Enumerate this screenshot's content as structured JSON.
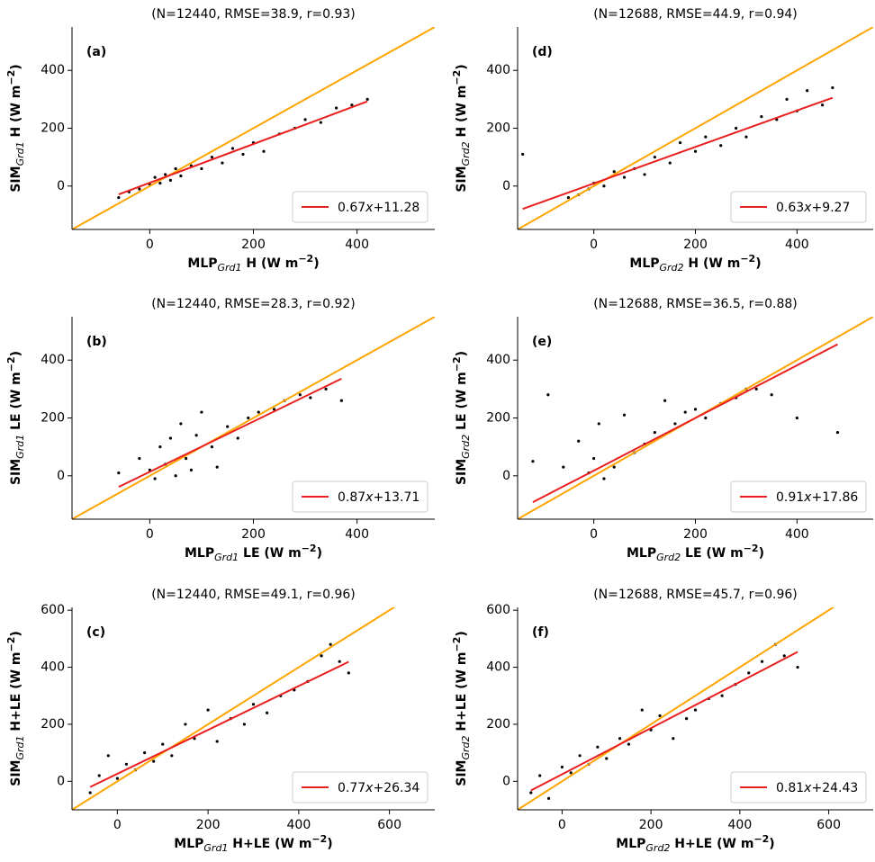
{
  "chart_data": [
    {
      "type": "scatter",
      "title": "(N=12440, RMSE=38.9, r=0.93)",
      "panel_label": "(a)",
      "xlabel": {
        "prefix": "MLP",
        "sub": "Grd1",
        "body": " H (W m",
        "sup": "−2",
        "suffix": ")"
      },
      "ylabel": {
        "prefix": "SIM",
        "sub": "Grd1",
        "body": " H (W m",
        "sup": "−2",
        "suffix": ")"
      },
      "x": [
        -60,
        -40,
        -20,
        0,
        10,
        20,
        30,
        40,
        50,
        60,
        80,
        100,
        120,
        140,
        160,
        180,
        200,
        220,
        250,
        280,
        300,
        330,
        360,
        390,
        420
      ],
      "y": [
        -40,
        -20,
        -10,
        5,
        30,
        10,
        40,
        20,
        60,
        35,
        70,
        60,
        100,
        80,
        130,
        110,
        150,
        120,
        180,
        200,
        230,
        220,
        270,
        280,
        300
      ],
      "xlim": [
        -150,
        550
      ],
      "ylim": [
        -150,
        550
      ],
      "xticks": [
        0,
        200,
        400
      ],
      "yticks": [
        0,
        200,
        400
      ],
      "fit": {
        "slope": 0.67,
        "var": "x",
        "sign": "+",
        "intercept": 11.28
      },
      "point_color": "#000000",
      "fit_color": "#e8201f",
      "identity_color": "#ffa500",
      "xlabel_color": "#9c5210",
      "ylabel_color": "#ff00ff"
    },
    {
      "type": "scatter",
      "title": "(N=12440, RMSE=28.3, r=0.92)",
      "panel_label": "(b)",
      "xlabel": {
        "prefix": "MLP",
        "sub": "Grd1",
        "body": " LE (W m",
        "sup": "−2",
        "suffix": ")"
      },
      "ylabel": {
        "prefix": "SIM",
        "sub": "Grd1",
        "body": " LE (W m",
        "sup": "−2",
        "suffix": ")"
      },
      "x": [
        -60,
        -20,
        0,
        10,
        20,
        30,
        40,
        50,
        60,
        70,
        80,
        90,
        100,
        120,
        130,
        150,
        170,
        190,
        210,
        240,
        260,
        290,
        310,
        340,
        370
      ],
      "y": [
        10,
        60,
        20,
        -10,
        100,
        40,
        130,
        0,
        180,
        60,
        20,
        140,
        220,
        100,
        30,
        170,
        130,
        200,
        220,
        230,
        260,
        280,
        270,
        300,
        260
      ],
      "xlim": [
        -150,
        550
      ],
      "ylim": [
        -150,
        550
      ],
      "xticks": [
        0,
        200,
        400
      ],
      "yticks": [
        0,
        200,
        400
      ],
      "fit": {
        "slope": 0.87,
        "var": "x",
        "sign": "+",
        "intercept": 13.71
      },
      "point_color": "#000000",
      "fit_color": "#e8201f",
      "identity_color": "#ffa500",
      "xlabel_color": "#9c5210",
      "ylabel_color": "#ff00ff"
    },
    {
      "type": "scatter",
      "title": "(N=12440, RMSE=49.1, r=0.96)",
      "panel_label": "(c)",
      "xlabel": {
        "prefix": "MLP",
        "sub": "Grd1",
        "body": " H+LE (W m",
        "sup": "−2",
        "suffix": ")"
      },
      "ylabel": {
        "prefix": "SIM",
        "sub": "Grd1",
        "body": " H+LE (W m",
        "sup": "−2",
        "suffix": ")"
      },
      "x": [
        -60,
        -40,
        -20,
        0,
        20,
        40,
        60,
        80,
        100,
        120,
        150,
        170,
        200,
        220,
        250,
        280,
        300,
        330,
        360,
        390,
        420,
        450,
        470,
        490,
        510
      ],
      "y": [
        -40,
        20,
        90,
        10,
        60,
        40,
        100,
        70,
        130,
        90,
        200,
        150,
        250,
        140,
        220,
        200,
        270,
        240,
        300,
        320,
        350,
        440,
        480,
        420,
        380
      ],
      "xlim": [
        -100,
        700
      ],
      "ylim": [
        -100,
        610
      ],
      "xticks": [
        0,
        200,
        400,
        600
      ],
      "yticks": [
        0,
        200,
        400,
        600
      ],
      "fit": {
        "slope": 0.77,
        "var": "x",
        "sign": "+",
        "intercept": 26.34
      },
      "point_color": "#000000",
      "fit_color": "#e8201f",
      "identity_color": "#ffa500",
      "xlabel_color": "#9c5210",
      "ylabel_color": "#ff00ff"
    },
    {
      "type": "scatter",
      "title": "(N=12688, RMSE=44.9, r=0.94)",
      "panel_label": "(d)",
      "xlabel": {
        "prefix": "MLP",
        "sub": "Grd2",
        "body": " H (W m",
        "sup": "−2",
        "suffix": ")"
      },
      "ylabel": {
        "prefix": "SIM",
        "sub": "Grd2",
        "body": " H (W m",
        "sup": "−2",
        "suffix": ")"
      },
      "x": [
        -140,
        -50,
        -30,
        -10,
        0,
        20,
        40,
        60,
        80,
        100,
        120,
        150,
        170,
        200,
        220,
        250,
        280,
        300,
        330,
        360,
        380,
        400,
        420,
        450,
        470
      ],
      "y": [
        110,
        -40,
        -30,
        -10,
        10,
        0,
        50,
        30,
        60,
        40,
        100,
        80,
        150,
        120,
        170,
        140,
        200,
        170,
        240,
        230,
        300,
        260,
        330,
        280,
        340
      ],
      "xlim": [
        -150,
        550
      ],
      "ylim": [
        -150,
        550
      ],
      "xticks": [
        0,
        200,
        400
      ],
      "yticks": [
        0,
        200,
        400
      ],
      "fit": {
        "slope": 0.63,
        "var": "x",
        "sign": "+",
        "intercept": 9.27
      },
      "point_color": "#000000",
      "fit_color": "#e8201f",
      "identity_color": "#ffa500",
      "xlabel_color": "#9c5210",
      "ylabel_color": "#ff00ff"
    },
    {
      "type": "scatter",
      "title": "(N=12688, RMSE=36.5, r=0.88)",
      "panel_label": "(e)",
      "xlabel": {
        "prefix": "MLP",
        "sub": "Grd2",
        "body": " LE (W m",
        "sup": "−2",
        "suffix": ")"
      },
      "ylabel": {
        "prefix": "SIM",
        "sub": "Grd2",
        "body": " LE (W m",
        "sup": "−2",
        "suffix": ")"
      },
      "x": [
        -120,
        -90,
        -60,
        -30,
        -10,
        0,
        10,
        20,
        40,
        60,
        80,
        100,
        120,
        140,
        160,
        180,
        200,
        220,
        250,
        280,
        300,
        320,
        350,
        400,
        480
      ],
      "y": [
        50,
        280,
        30,
        120,
        10,
        60,
        180,
        -10,
        30,
        210,
        80,
        110,
        150,
        260,
        180,
        220,
        230,
        200,
        250,
        270,
        300,
        300,
        280,
        200,
        150
      ],
      "xlim": [
        -150,
        550
      ],
      "ylim": [
        -150,
        550
      ],
      "xticks": [
        0,
        200,
        400
      ],
      "yticks": [
        0,
        200,
        400
      ],
      "fit": {
        "slope": 0.91,
        "var": "x",
        "sign": "+",
        "intercept": 17.86
      },
      "point_color": "#000000",
      "fit_color": "#e8201f",
      "identity_color": "#ffa500",
      "xlabel_color": "#9c5210",
      "ylabel_color": "#ff00ff"
    },
    {
      "type": "scatter",
      "title": "(N=12688, RMSE=45.7, r=0.96)",
      "panel_label": "(f)",
      "xlabel": {
        "prefix": "MLP",
        "sub": "Grd2",
        "body": " H+LE (W m",
        "sup": "−2",
        "suffix": ")"
      },
      "ylabel": {
        "prefix": "SIM",
        "sub": "Grd2",
        "body": " H+LE (W m",
        "sup": "−2",
        "suffix": ")"
      },
      "x": [
        -70,
        -50,
        -30,
        0,
        20,
        40,
        60,
        80,
        100,
        130,
        150,
        180,
        200,
        220,
        250,
        280,
        300,
        330,
        360,
        390,
        420,
        450,
        480,
        500,
        530
      ],
      "y": [
        -40,
        20,
        -60,
        50,
        30,
        90,
        60,
        120,
        80,
        150,
        130,
        250,
        180,
        230,
        150,
        220,
        250,
        290,
        300,
        340,
        380,
        420,
        480,
        440,
        400
      ],
      "xlim": [
        -100,
        700
      ],
      "ylim": [
        -100,
        610
      ],
      "xticks": [
        0,
        200,
        400,
        600
      ],
      "yticks": [
        0,
        200,
        400,
        600
      ],
      "fit": {
        "slope": 0.81,
        "var": "x",
        "sign": "+",
        "intercept": 24.43
      },
      "point_color": "#000000",
      "fit_color": "#e8201f",
      "identity_color": "#ffa500",
      "xlabel_color": "#9c5210",
      "ylabel_color": "#ff00ff"
    }
  ]
}
